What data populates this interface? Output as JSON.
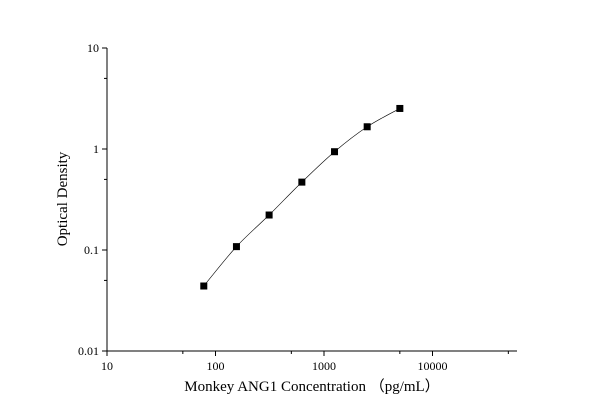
{
  "chart_data": {
    "type": "scatter",
    "title": "",
    "xlabel": "Monkey ANG1 Concentration （pg/mL）",
    "ylabel": "Optical Density",
    "x_scale": "log",
    "y_scale": "log",
    "xlim": [
      10,
      50000
    ],
    "ylim": [
      0.01,
      10
    ],
    "grid": false,
    "legend": "none",
    "x_ticks": [
      "10",
      "100",
      "1000",
      "10000"
    ],
    "y_ticks": [
      "0.01",
      "0.1",
      "1",
      "10"
    ],
    "marker": "square",
    "marker_color": "#000000",
    "line_color": "#000000",
    "fit_curve": true,
    "series": [
      {
        "x": [
          78,
          156,
          312,
          625,
          1250,
          2500,
          5000
        ],
        "y": [
          0.044,
          0.108,
          0.222,
          0.47,
          0.94,
          1.66,
          2.52
        ]
      }
    ]
  }
}
